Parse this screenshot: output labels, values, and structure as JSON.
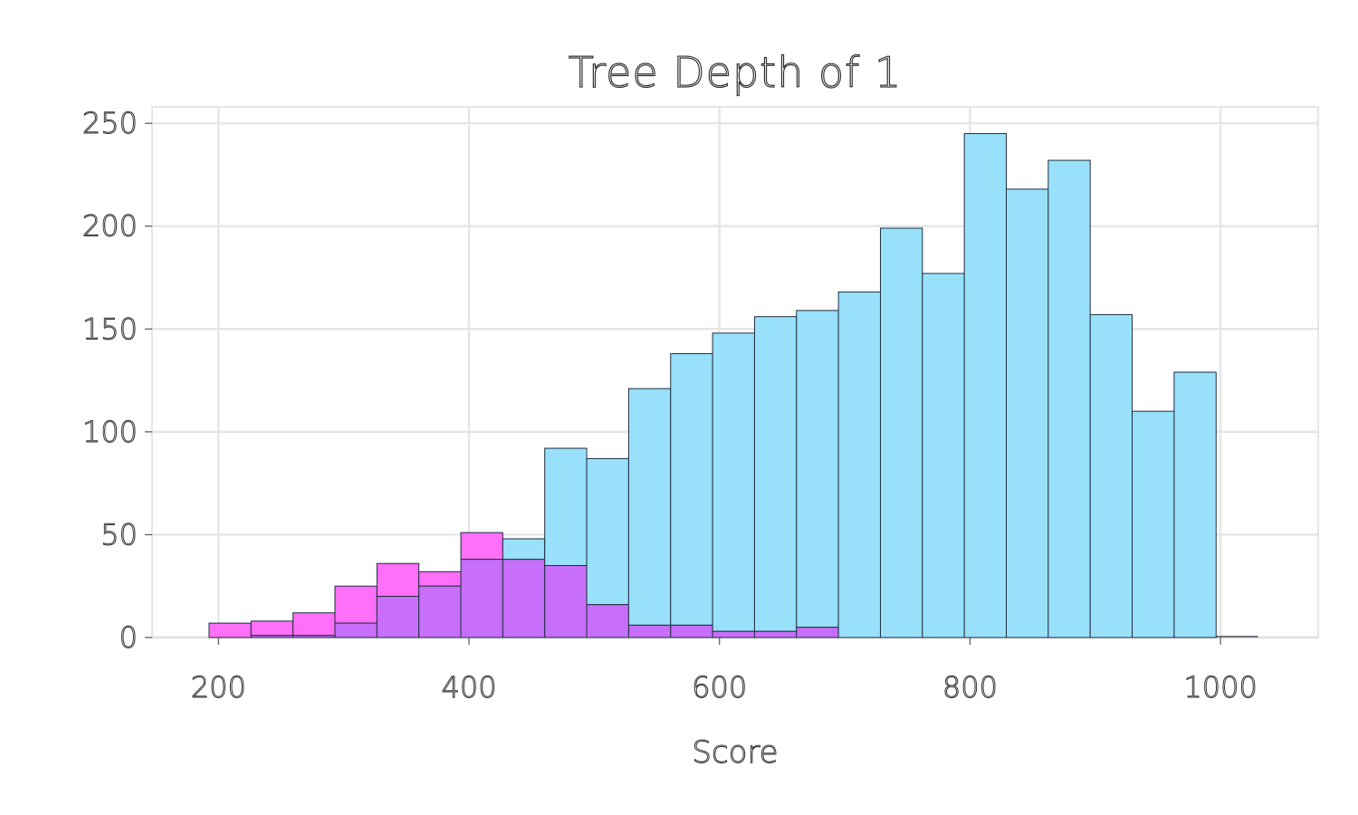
{
  "chart_data": {
    "type": "bar",
    "title": "Tree Depth of 1",
    "xlabel": "Score",
    "ylabel": "",
    "xlim": [
      147,
      1078
    ],
    "ylim": [
      0,
      258
    ],
    "xticks": [
      200,
      400,
      600,
      800,
      1000
    ],
    "yticks": [
      0,
      50,
      100,
      150,
      200,
      250
    ],
    "grid": true,
    "colors": {
      "series_1": "#99e0fb",
      "series_2": "#ff6ff8",
      "overlap": "#c76ffa"
    },
    "bin_edges": [
      192.5,
      226,
      259.5,
      293,
      326.5,
      360,
      393.5,
      427,
      460.5,
      494,
      527.5,
      561,
      594.5,
      628,
      661.5,
      695,
      728.5,
      762,
      795.5,
      829,
      862.5,
      896,
      929.5,
      963,
      996.5,
      1030
    ],
    "series": [
      {
        "values": [
          0,
          1,
          1,
          7,
          20,
          25,
          38,
          48,
          92,
          87,
          121,
          138,
          148,
          156,
          159,
          168,
          199,
          177,
          245,
          218,
          232,
          157,
          110,
          129,
          0
        ]
      },
      {
        "values": [
          7,
          8,
          12,
          25,
          36,
          32,
          51,
          38,
          35,
          16,
          6,
          6,
          3,
          3,
          5,
          0,
          0,
          0,
          0,
          0,
          0,
          0,
          0,
          0,
          0
        ]
      }
    ]
  }
}
